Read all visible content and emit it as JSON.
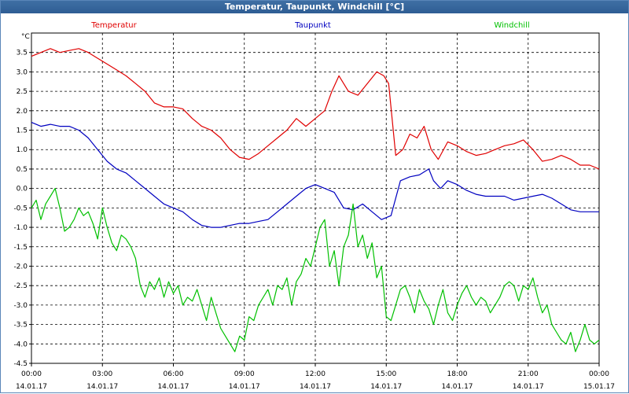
{
  "window": {
    "title": "Temperatur, Taupunkt, Windchill [°C]"
  },
  "chart_data": {
    "type": "line",
    "title": "Temperatur, Taupunkt, Windchill [°C]",
    "ylabel": "°C",
    "ylim": [
      -4.5,
      4.0
    ],
    "xlim": [
      0,
      24
    ],
    "grid": true,
    "y_ticks": [
      "3.5",
      "3.0",
      "2.5",
      "2.0",
      "1.5",
      "1.0",
      "0.5",
      "0.0",
      "-0.5",
      "-1.0",
      "-1.5",
      "-2.0",
      "-2.5",
      "-3.0",
      "-3.5",
      "-4.0",
      "-4.5"
    ],
    "x_ticks": [
      {
        "time": "00:00",
        "date": "14.01.17"
      },
      {
        "time": "03:00",
        "date": "14.01.17"
      },
      {
        "time": "06:00",
        "date": "14.01.17"
      },
      {
        "time": "09:00",
        "date": "14.01.17"
      },
      {
        "time": "12:00",
        "date": "14.01.17"
      },
      {
        "time": "15:00",
        "date": "14.01.17"
      },
      {
        "time": "18:00",
        "date": "14.01.17"
      },
      {
        "time": "21:00",
        "date": "14.01.17"
      },
      {
        "time": "00:00",
        "date": "15.01.17"
      }
    ],
    "series": [
      {
        "name": "Temperatur",
        "color": "#e00000",
        "x": [
          0,
          0.4,
          0.8,
          1.2,
          1.6,
          2.0,
          2.4,
          2.8,
          3.2,
          3.6,
          4.0,
          4.4,
          4.8,
          5.2,
          5.6,
          6.0,
          6.4,
          6.8,
          7.2,
          7.6,
          8.0,
          8.4,
          8.8,
          9.2,
          9.6,
          10.0,
          10.4,
          10.8,
          11.2,
          11.6,
          12.0,
          12.4,
          12.7,
          13.0,
          13.4,
          13.8,
          14.2,
          14.6,
          14.9,
          15.1,
          15.4,
          15.7,
          16.0,
          16.3,
          16.6,
          16.9,
          17.2,
          17.6,
          18.0,
          18.4,
          18.8,
          19.2,
          19.6,
          20.0,
          20.4,
          20.8,
          21.2,
          21.6,
          22.0,
          22.4,
          22.8,
          23.2,
          23.6,
          24.0
        ],
        "values": [
          3.4,
          3.5,
          3.6,
          3.5,
          3.55,
          3.6,
          3.5,
          3.35,
          3.2,
          3.05,
          2.9,
          2.7,
          2.5,
          2.2,
          2.1,
          2.1,
          2.05,
          1.8,
          1.6,
          1.5,
          1.3,
          1.0,
          0.8,
          0.75,
          0.9,
          1.1,
          1.3,
          1.5,
          1.8,
          1.6,
          1.8,
          2.0,
          2.5,
          2.9,
          2.5,
          2.4,
          2.7,
          3.0,
          2.9,
          2.7,
          0.85,
          1.0,
          1.4,
          1.3,
          1.6,
          1.0,
          0.75,
          1.2,
          1.1,
          0.95,
          0.85,
          0.9,
          1.0,
          1.1,
          1.15,
          1.25,
          1.0,
          0.7,
          0.75,
          0.85,
          0.75,
          0.6,
          0.6,
          0.5
        ]
      },
      {
        "name": "Taupunkt",
        "color": "#0000c0",
        "x": [
          0,
          0.4,
          0.8,
          1.2,
          1.6,
          2.0,
          2.4,
          2.8,
          3.2,
          3.6,
          4.0,
          4.4,
          4.8,
          5.2,
          5.6,
          6.0,
          6.4,
          6.8,
          7.2,
          7.6,
          8.0,
          8.4,
          8.8,
          9.2,
          9.6,
          10.0,
          10.4,
          10.8,
          11.2,
          11.6,
          12.0,
          12.4,
          12.8,
          13.2,
          13.6,
          14.0,
          14.4,
          14.8,
          15.2,
          15.6,
          16.0,
          16.4,
          16.8,
          17.0,
          17.3,
          17.6,
          18.0,
          18.4,
          18.8,
          19.2,
          19.6,
          20.0,
          20.4,
          20.8,
          21.2,
          21.6,
          22.0,
          22.4,
          22.8,
          23.2,
          23.6,
          24.0
        ],
        "values": [
          1.7,
          1.6,
          1.65,
          1.6,
          1.6,
          1.5,
          1.3,
          1.0,
          0.7,
          0.5,
          0.4,
          0.2,
          0.0,
          -0.2,
          -0.4,
          -0.5,
          -0.6,
          -0.8,
          -0.95,
          -1.0,
          -1.0,
          -0.95,
          -0.9,
          -0.9,
          -0.85,
          -0.8,
          -0.6,
          -0.4,
          -0.2,
          0.0,
          0.1,
          0.0,
          -0.1,
          -0.5,
          -0.55,
          -0.4,
          -0.6,
          -0.8,
          -0.7,
          0.2,
          0.3,
          0.35,
          0.5,
          0.2,
          0.0,
          0.2,
          0.1,
          -0.05,
          -0.15,
          -0.2,
          -0.2,
          -0.2,
          -0.3,
          -0.25,
          -0.2,
          -0.15,
          -0.25,
          -0.4,
          -0.55,
          -0.6,
          -0.6,
          -0.6
        ]
      },
      {
        "name": "Windchill",
        "color": "#00c000",
        "x": [
          0,
          0.2,
          0.4,
          0.6,
          0.8,
          1.0,
          1.2,
          1.4,
          1.6,
          1.8,
          2.0,
          2.2,
          2.4,
          2.6,
          2.8,
          3.0,
          3.2,
          3.4,
          3.6,
          3.8,
          4.0,
          4.2,
          4.4,
          4.6,
          4.8,
          5.0,
          5.2,
          5.4,
          5.6,
          5.8,
          6.0,
          6.2,
          6.4,
          6.6,
          6.8,
          7.0,
          7.2,
          7.4,
          7.6,
          7.8,
          8.0,
          8.2,
          8.4,
          8.6,
          8.8,
          9.0,
          9.2,
          9.4,
          9.6,
          9.8,
          10.0,
          10.2,
          10.4,
          10.6,
          10.8,
          11.0,
          11.2,
          11.4,
          11.6,
          11.8,
          12.0,
          12.2,
          12.4,
          12.6,
          12.8,
          13.0,
          13.2,
          13.4,
          13.6,
          13.8,
          14.0,
          14.2,
          14.4,
          14.6,
          14.8,
          15.0,
          15.2,
          15.4,
          15.6,
          15.8,
          16.0,
          16.2,
          16.4,
          16.6,
          16.8,
          17.0,
          17.2,
          17.4,
          17.6,
          17.8,
          18.0,
          18.2,
          18.4,
          18.6,
          18.8,
          19.0,
          19.2,
          19.4,
          19.6,
          19.8,
          20.0,
          20.2,
          20.4,
          20.6,
          20.8,
          21.0,
          21.2,
          21.4,
          21.6,
          21.8,
          22.0,
          22.2,
          22.4,
          22.6,
          22.8,
          23.0,
          23.2,
          23.4,
          23.6,
          23.8,
          24.0
        ],
        "values": [
          -0.5,
          -0.3,
          -0.8,
          -0.4,
          -0.2,
          0.0,
          -0.5,
          -1.1,
          -1.0,
          -0.8,
          -0.5,
          -0.7,
          -0.6,
          -0.9,
          -1.3,
          -0.5,
          -1.0,
          -1.4,
          -1.6,
          -1.2,
          -1.3,
          -1.5,
          -1.8,
          -2.5,
          -2.8,
          -2.4,
          -2.6,
          -2.3,
          -2.8,
          -2.4,
          -2.7,
          -2.5,
          -3.0,
          -2.8,
          -2.9,
          -2.6,
          -3.0,
          -3.4,
          -2.8,
          -3.2,
          -3.6,
          -3.8,
          -4.0,
          -4.2,
          -3.8,
          -3.9,
          -3.3,
          -3.4,
          -3.0,
          -2.8,
          -2.6,
          -3.0,
          -2.5,
          -2.6,
          -2.3,
          -3.0,
          -2.4,
          -2.2,
          -1.8,
          -2.0,
          -1.5,
          -1.0,
          -0.8,
          -2.0,
          -1.6,
          -2.5,
          -1.5,
          -1.2,
          -0.4,
          -1.5,
          -1.2,
          -1.8,
          -1.4,
          -2.3,
          -2.0,
          -3.3,
          -3.4,
          -3.0,
          -2.6,
          -2.5,
          -2.8,
          -3.2,
          -2.6,
          -2.9,
          -3.1,
          -3.5,
          -3.0,
          -2.6,
          -3.2,
          -3.4,
          -3.0,
          -2.7,
          -2.5,
          -2.8,
          -3.0,
          -2.8,
          -2.9,
          -3.2,
          -3.0,
          -2.8,
          -2.5,
          -2.4,
          -2.5,
          -2.9,
          -2.5,
          -2.6,
          -2.3,
          -2.8,
          -3.2,
          -3.0,
          -3.5,
          -3.7,
          -3.9,
          -4.0,
          -3.7,
          -4.2,
          -3.9,
          -3.5,
          -3.9,
          -4.0,
          -3.9
        ]
      }
    ]
  }
}
